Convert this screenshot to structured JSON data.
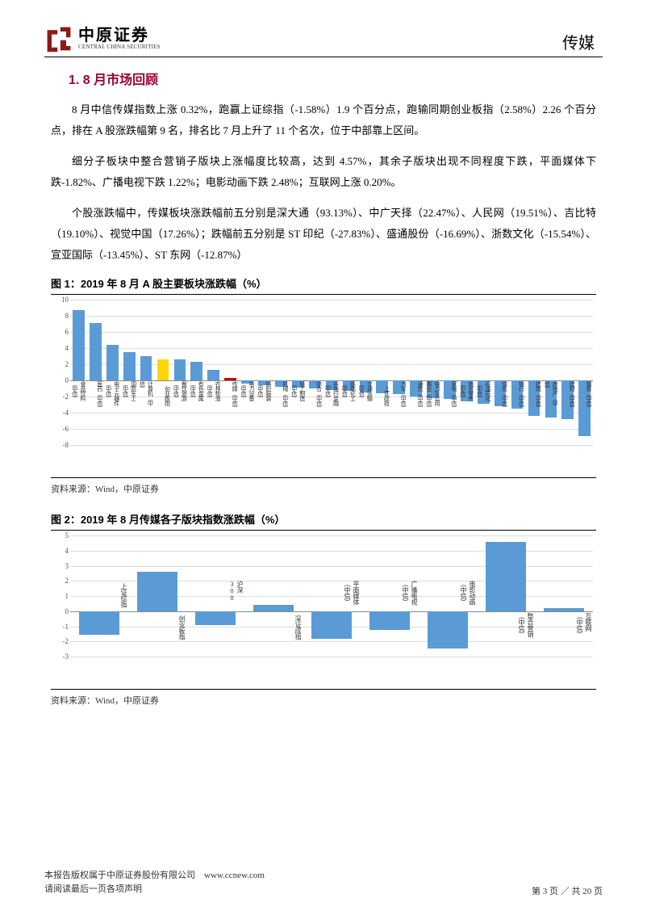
{
  "header": {
    "logo_cn": "中原证券",
    "logo_en": "CENTRAL CHINA SECURITIES",
    "title": "传媒"
  },
  "section_title": "1. 8 月市场回顾",
  "paragraphs": [
    "8 月中信传媒指数上涨 0.32%，跑赢上证综指（-1.58%）1.9 个百分点，跑输同期创业板指（2.58%）2.26 个百分点，排在 A 股涨跌幅第 9 名，排名比 7 月上升了 11 个名次，位于中部靠上区间。",
    "细分子板块中整合营销子版块上涨幅度比较高，达到 4.57%，其余子版块出现不同程度下跌，平面媒体下跌-1.82%、广播电视下跌 1.22%；电影动画下跌 2.48%；互联网上涨 0.20%。",
    "个股涨跌幅中，传媒板块涨跌幅前五分别是深大通（93.13%）、中广天择（22.47%）、人民网（19.51%）、吉比特（19.10%）、视觉中国（17.26%）；跌幅前五分别是 ST 印纪（-27.83%）、盛通股份（-16.69%）、浙数文化（-15.54%）、宣亚国际（-13.45%）、ST 东网（-12.87%）"
  ],
  "fig1": {
    "title": "图 1：2019 年 8 月 A 股主要板块涨跌幅（%）",
    "source": "资料来源：Wind，中原证券",
    "y_min": -8,
    "y_max": 10,
    "y_step": 2,
    "bars": [
      {
        "label": "食品饮料（中信）",
        "v": 8.7,
        "c": "#5b9bd5"
      },
      {
        "label": "医药（中信）",
        "v": 7.1,
        "c": "#5b9bd5"
      },
      {
        "label": "电子元器件（中信）",
        "v": 4.4,
        "c": "#5b9bd5"
      },
      {
        "label": "国防军工（中信）",
        "v": 3.5,
        "c": "#5b9bd5"
      },
      {
        "label": "计算机（中信）",
        "v": 3.0,
        "c": "#5b9bd5"
      },
      {
        "label": "创业板指",
        "v": 2.6,
        "c": "#ffd700"
      },
      {
        "label": "餐饮旅游（中信）",
        "v": 2.6,
        "c": "#5b9bd5"
      },
      {
        "label": "有色金属（中信）",
        "v": 2.3,
        "c": "#5b9bd5"
      },
      {
        "label": "农林牧渔（中信）",
        "v": 1.3,
        "c": "#5b9bd5"
      },
      {
        "label": "传媒（中信）",
        "v": 0.3,
        "c": "#c00000"
      },
      {
        "label": "电力设备（中信）",
        "v": -0.4,
        "c": "#5b9bd5"
      },
      {
        "label": "纺织服装（中信）",
        "v": -0.6,
        "c": "#5b9bd5"
      },
      {
        "label": "机械（中信）",
        "v": -0.8,
        "c": "#5b9bd5"
      },
      {
        "label": "轻工制造（中信）",
        "v": -0.9,
        "c": "#5b9bd5"
      },
      {
        "label": "综合（中信）",
        "v": -1.0,
        "c": "#5b9bd5"
      },
      {
        "label": "非银行金融（中信）",
        "v": -1.2,
        "c": "#5b9bd5"
      },
      {
        "label": "基础化工（中信）",
        "v": -1.3,
        "c": "#5b9bd5"
      },
      {
        "label": "交通运输（中信）",
        "v": -1.5,
        "c": "#5b9bd5"
      },
      {
        "label": "上证综指",
        "v": -1.6,
        "c": "#5b9bd5"
      },
      {
        "label": "汽车（中信）",
        "v": -1.7,
        "c": "#5b9bd5"
      },
      {
        "label": "通信（中信）",
        "v": -2.0,
        "c": "#5b9bd5"
      },
      {
        "label": "电力及公用事业（中信）",
        "v": -2.2,
        "c": "#5b9bd5"
      },
      {
        "label": "家电（中信）",
        "v": -2.3,
        "c": "#5b9bd5"
      },
      {
        "label": "商贸零售（中信）",
        "v": -2.6,
        "c": "#5b9bd5"
      },
      {
        "label": "石油石化（中信）",
        "v": -2.9,
        "c": "#5b9bd5"
      },
      {
        "label": "煤炭（中信）",
        "v": -3.2,
        "c": "#5b9bd5"
      },
      {
        "label": "银行（中信）",
        "v": -3.5,
        "c": "#5b9bd5"
      },
      {
        "label": "建筑（中信）",
        "v": -4.4,
        "c": "#5b9bd5"
      },
      {
        "label": "房地产（中信）",
        "v": -4.6,
        "c": "#5b9bd5"
      },
      {
        "label": "建材（中信）",
        "v": -4.8,
        "c": "#5b9bd5"
      },
      {
        "label": "钢铁（中信）",
        "v": -6.9,
        "c": "#5b9bd5"
      }
    ]
  },
  "fig2": {
    "title": "图 2：2019 年 8 月传媒各子版块指数涨跌幅（%）",
    "source": "资料来源：Wind，中原证券",
    "y_min": -3,
    "y_max": 5,
    "y_step": 1,
    "bars": [
      {
        "label": "上证综指",
        "v": -1.58,
        "c": "#5b9bd5"
      },
      {
        "label": "创业板指",
        "v": 2.58,
        "c": "#5b9bd5"
      },
      {
        "label": "沪深300",
        "v": -0.9,
        "c": "#5b9bd5"
      },
      {
        "label": "深证成指",
        "v": 0.4,
        "c": "#5b9bd5"
      },
      {
        "label": "平面媒体（中信）",
        "v": -1.82,
        "c": "#5b9bd5"
      },
      {
        "label": "广播电视（中信）",
        "v": -1.22,
        "c": "#5b9bd5"
      },
      {
        "label": "电影动画（中信）",
        "v": -2.48,
        "c": "#5b9bd5"
      },
      {
        "label": "整合营销（中信）",
        "v": 4.57,
        "c": "#5b9bd5"
      },
      {
        "label": "互联网（中信）",
        "v": 0.2,
        "c": "#5b9bd5"
      }
    ]
  },
  "footer": {
    "copyright": "本报告版权属于中原证券股份有限公司",
    "site": "www.ccnew.com",
    "disclaimer": "请阅读最后一页各项声明",
    "page": "第 3 页 ／ 共 20 页"
  }
}
